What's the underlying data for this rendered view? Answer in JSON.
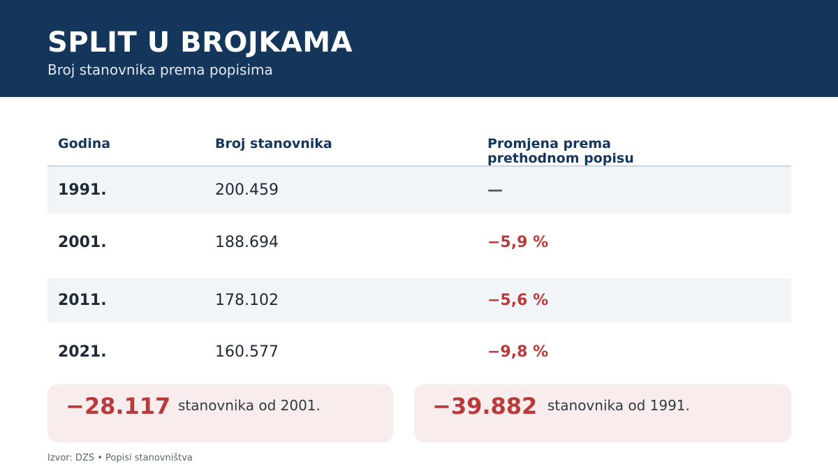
{
  "header": {
    "title": "SPLIT U BROJKAMA",
    "subtitle": "Broj stanovnika prema popisima"
  },
  "table": {
    "columns": [
      "Godina",
      "Broj stanovnika",
      "Promjena prema prethodnom popisu"
    ],
    "rows": [
      {
        "year": "1991.",
        "population": "200.459",
        "change": "—"
      },
      {
        "year": "2001.",
        "population": "188.694",
        "change": "−5,9 %"
      },
      {
        "year": "2011.",
        "population": "178.102",
        "change": "−5,6 %"
      },
      {
        "year": "2021.",
        "population": "160.577",
        "change": "−9,8 %"
      }
    ]
  },
  "summary": [
    {
      "value": "−28.117",
      "text": "stanovnika od 2001."
    },
    {
      "value": "−39.882",
      "text": "stanovnika od 1991."
    }
  ],
  "source": "Izvor: DZS • Popisi stanovništva",
  "colors": {
    "header_bg": "#14365a",
    "negative": "#b83a3a",
    "row_shade": "#f2f5f8",
    "card_bg": "#f9ecec"
  }
}
